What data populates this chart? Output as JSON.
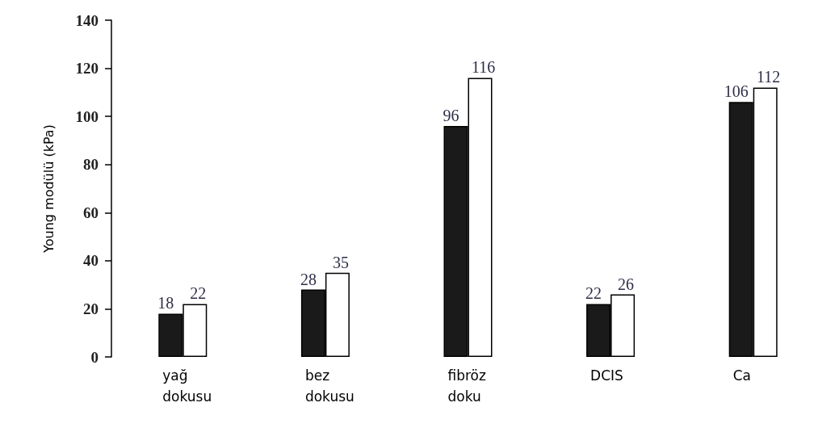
{
  "chart_data": {
    "type": "bar",
    "ylabel": "Young modülü (kPa)",
    "categories": [
      "yağ\ndokusu",
      "bez\ndokusu",
      "fibröz\ndoku",
      "DCIS",
      "Ca"
    ],
    "series": [
      {
        "color": "#1a1a1a",
        "values": [
          18,
          28,
          96,
          22,
          106
        ]
      },
      {
        "color": "#ffffff",
        "values": [
          22,
          35,
          116,
          26,
          112
        ]
      }
    ],
    "ylim": [
      0,
      140
    ],
    "yticks": [
      0,
      20,
      40,
      60,
      80,
      100,
      120,
      140
    ],
    "grid": false,
    "data_labels": true
  }
}
